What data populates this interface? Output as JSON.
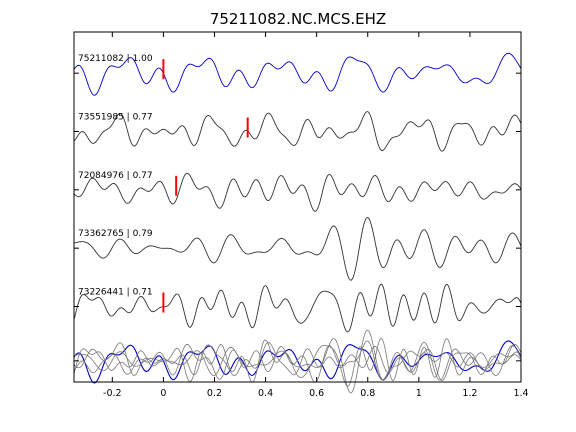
{
  "chart_data": {
    "type": "line",
    "title": "75211082.NC.MCS.EHZ",
    "xlim": [
      -0.35,
      1.4
    ],
    "xticks": [
      -0.2,
      0,
      0.2,
      0.4,
      0.6,
      0.8,
      1,
      1.2,
      1.4
    ],
    "xtick_labels": [
      "-0.2",
      "0",
      "0.2",
      "0.4",
      "0.6",
      "0.8",
      "1",
      "1.2",
      "1.4"
    ],
    "xlabel": "",
    "ylabel": "",
    "grid": false,
    "colors": {
      "reference": "#0000cc",
      "trace": "#333333",
      "stack": "#777777",
      "pick": "#ff0000"
    },
    "series": [
      {
        "label": "75211082 | 1.00",
        "pick_time": 0.0,
        "reference": true
      },
      {
        "label": "73551985 | 0.77",
        "pick_time": 0.33,
        "reference": false
      },
      {
        "label": "72084976 | 0.77",
        "pick_time": 0.05,
        "reference": false
      },
      {
        "label": "73362765 | 0.79",
        "pick_time": null,
        "reference": false
      },
      {
        "label": "73226441 | 0.71",
        "pick_time": 0.0,
        "reference": false
      }
    ],
    "overlay": {
      "position": "bottom",
      "description": ""
    }
  }
}
